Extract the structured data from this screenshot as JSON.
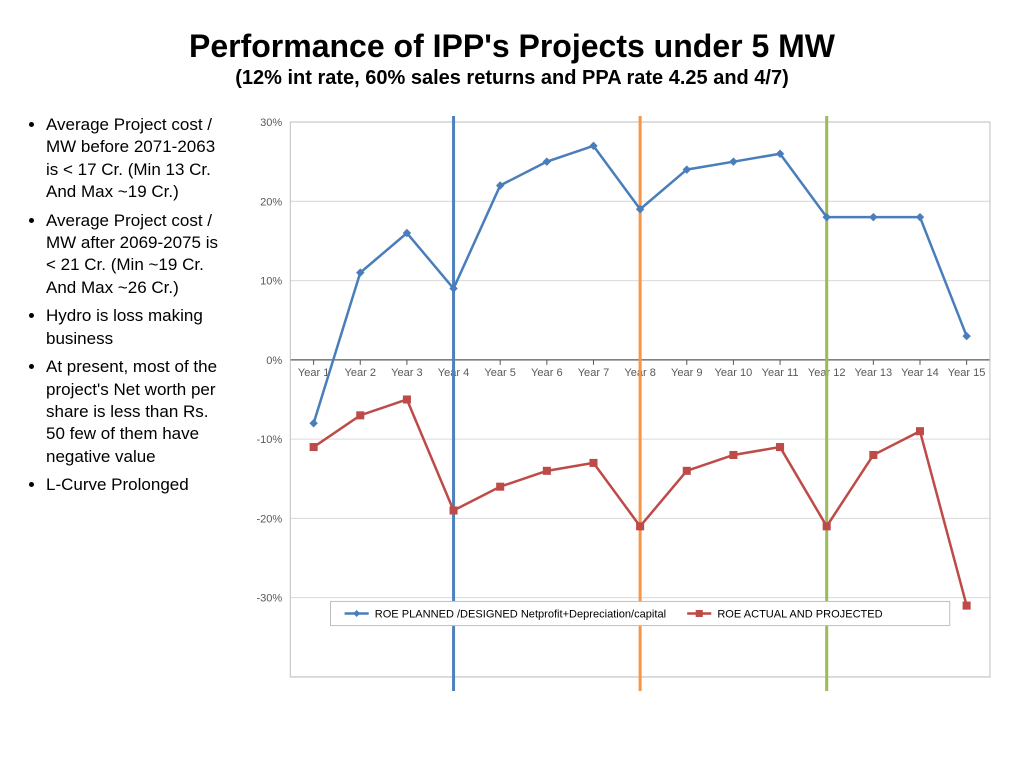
{
  "title": "Performance of IPP's Projects under 5 MW",
  "subtitle": "(12% int rate, 60% sales returns and PPA rate 4.25 and  4/7)",
  "bullets": [
    "Average Project cost / MW before 2071-2063 is < 17 Cr. (Min 13  Cr. And Max ~19 Cr.)",
    "Average Project cost / MW after 2069-2075 is < 21 Cr. (Min ~19 Cr. And Max ~26 Cr.)",
    "Hydro is loss making business",
    "At present, most of the project's Net worth per share is less than Rs. 50 few of them have negative value",
    "L-Curve Prolonged"
  ],
  "chart": {
    "type": "line",
    "background_color": "#ffffff",
    "plot_border_color": "#bfbfbf",
    "grid_color": "#d9d9d9",
    "axis_label_color": "#595959",
    "axis_fontsize": 11,
    "categories": [
      "Year 1",
      "Year 2",
      "Year 3",
      "Year 4",
      "Year 5",
      "Year 6",
      "Year 7",
      "Year 8",
      "Year 9",
      "Year 10",
      "Year 11",
      "Year 12",
      "Year 13",
      "Year 14",
      "Year 15"
    ],
    "y_min": -40,
    "y_max": 30,
    "y_tick_step": 10,
    "y_tick_format_suffix": "%",
    "series": [
      {
        "name": "ROE PLANNED /DESIGNED Netprofit+Depreciation/capital",
        "color": "#4a7ebb",
        "marker": "diamond",
        "marker_size": 7,
        "line_width": 2.5,
        "values": [
          -8,
          11,
          16,
          9,
          22,
          25,
          27,
          19,
          24,
          25,
          26,
          18,
          18,
          18,
          3
        ]
      },
      {
        "name": "ROE ACTUAL AND PROJECTED",
        "color": "#be4b48",
        "marker": "square",
        "marker_size": 7,
        "line_width": 2.5,
        "values": [
          -11,
          -7,
          -5,
          -19,
          -16,
          -14,
          -13,
          -21,
          -14,
          -12,
          -11,
          -21,
          -12,
          -9,
          -31
        ]
      }
    ],
    "reference_lines": [
      {
        "x_index": 3,
        "color": "#4f81bd",
        "width": 3
      },
      {
        "x_index": 7,
        "color": "#f79646",
        "width": 3
      },
      {
        "x_index": 11,
        "color": "#9bbb59",
        "width": 3
      }
    ],
    "legend": {
      "position_y_percent": -32,
      "border_color": "#bfbfbf",
      "background": "#ffffff",
      "fontsize": 11
    }
  }
}
